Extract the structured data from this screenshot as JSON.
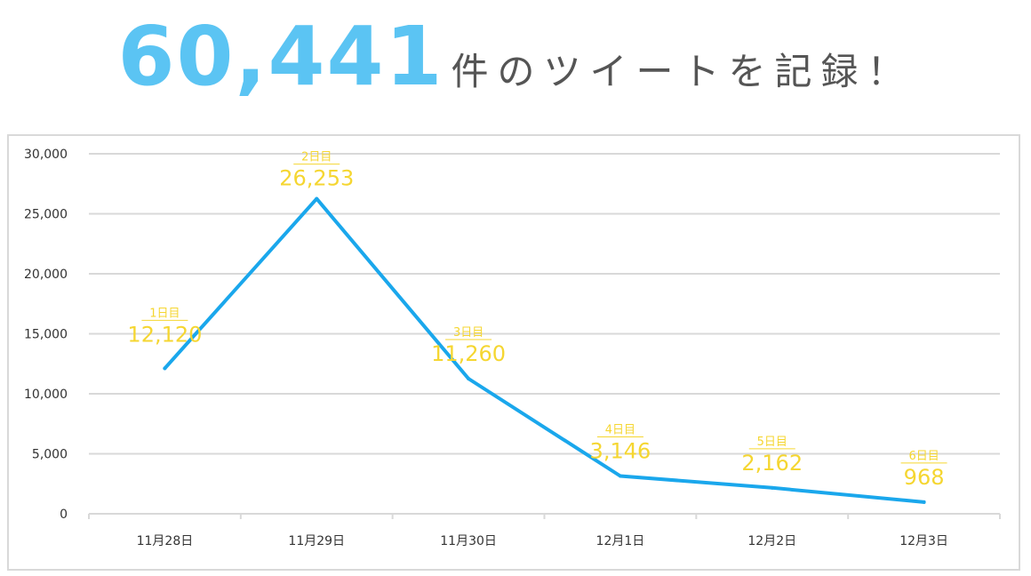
{
  "headline": {
    "count": "60,441",
    "suffix": "件のツイートを記録！"
  },
  "colors": {
    "headline_number": "#5bc4f3",
    "headline_text": "#555555",
    "line": "#1aa7ec",
    "data_label": "#f5d631",
    "grid": "#d9d9d9",
    "axis_text": "#333333"
  },
  "chart_data": {
    "type": "line",
    "title": "",
    "xlabel": "",
    "ylabel": "",
    "categories": [
      "11月28日",
      "11月29日",
      "11月30日",
      "12月1日",
      "12月2日",
      "12月3日"
    ],
    "series": [
      {
        "values": [
          12120,
          26253,
          11260,
          3146,
          2162,
          968
        ]
      }
    ],
    "day_labels": [
      "1日目",
      "2日目",
      "3日目",
      "4日目",
      "5日目",
      "6日目"
    ],
    "value_labels": [
      "12,120",
      "26,253",
      "11,260",
      "3,146",
      "2,162",
      "968"
    ],
    "ylim": [
      0,
      30000
    ],
    "yticks": [
      0,
      5000,
      10000,
      15000,
      20000,
      25000,
      30000
    ],
    "ytick_labels": [
      "0",
      "5,000",
      "10,000",
      "15,000",
      "20,000",
      "25,000",
      "30,000"
    ],
    "grid": true,
    "legend": "none"
  }
}
